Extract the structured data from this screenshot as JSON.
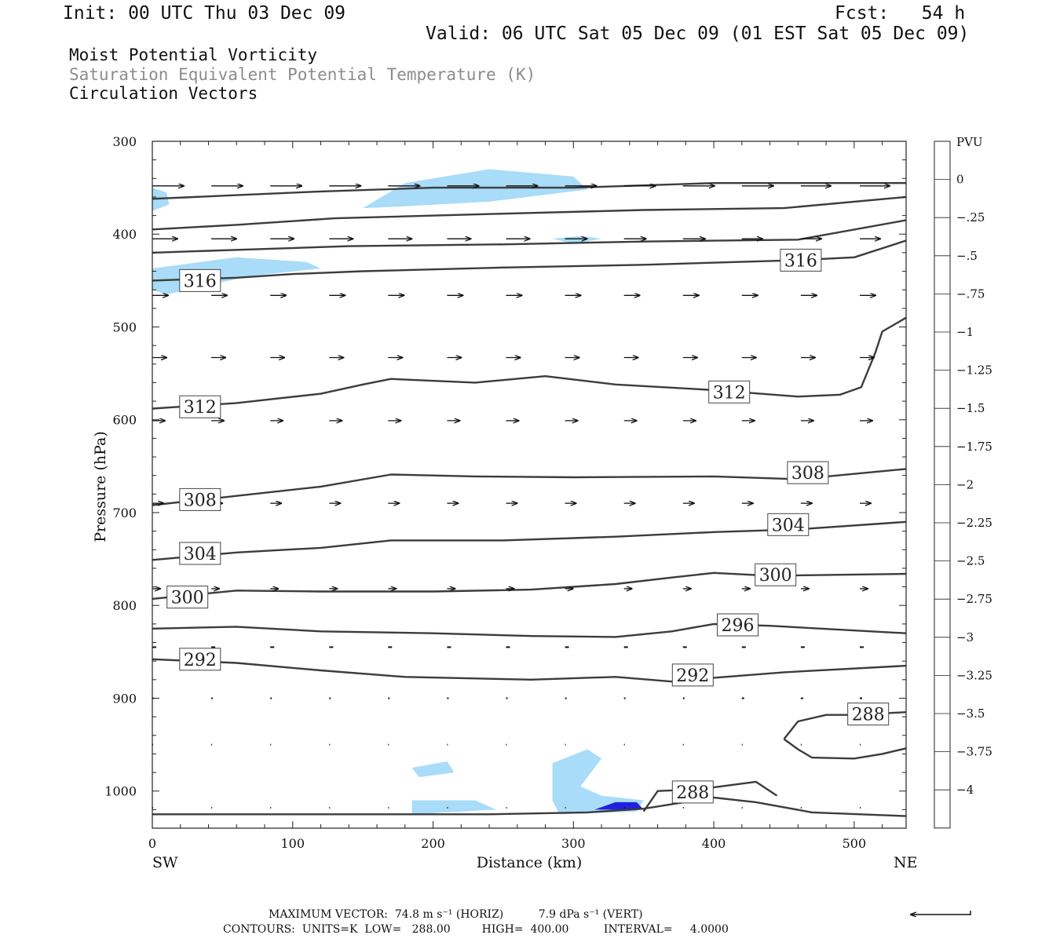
{
  "header": {
    "init": "Init: 00 UTC Thu 03 Dec 09",
    "fcst": "Fcst:   54 h",
    "valid": "Valid: 06 UTC Sat 05 Dec 09 (01 EST Sat 05 Dec 09)"
  },
  "titles": {
    "line1": "Moist Potential Vorticity",
    "line2": "Saturation Equivalent Potential Temperature (K)",
    "line3": "Circulation Vectors"
  },
  "colors": {
    "title_line2": "#8c8c8c",
    "contour": "#3c3c3c",
    "shade_light": "#a8dcf8",
    "shade_mid": "#8a9cec",
    "shade_dark": "#2020e0"
  },
  "chart_data": {
    "type": "contour",
    "xlabel": "Distance (km)",
    "ylabel": "Pressure (hPa)",
    "xlim": [
      0,
      537
    ],
    "ylim": [
      1040,
      300
    ],
    "x_ticks": [
      0,
      100,
      200,
      300,
      400,
      500
    ],
    "y_ticks": [
      300,
      400,
      500,
      600,
      700,
      800,
      900,
      1000
    ],
    "x_end_labels": {
      "left": "SW",
      "right": "NE"
    },
    "colorbar": {
      "title": "PVU",
      "levels": [
        "0",
        "-.25",
        "-.5",
        "-.75",
        "-1",
        "-1.25",
        "-1.5",
        "-1.75",
        "-2",
        "-2.25",
        "-2.5",
        "-2.75",
        "-3",
        "-3.25",
        "-3.5",
        "-3.75",
        "-4"
      ],
      "colors": [
        "#ffffff",
        "#ffffff",
        "#b4e4fa",
        "#a8d8f8",
        "#a0cdf6",
        "#a2c2f4",
        "#9fb6f2",
        "#9aa9f0",
        "#939ced",
        "#8a8eeb",
        "#8180e9",
        "#7672e7",
        "#6a62e6",
        "#5c52e4",
        "#4c40e3",
        "#3c2ee2",
        "#2a1ae0",
        "#1a0ce0"
      ]
    },
    "contours": [
      {
        "label": "316",
        "points": [
          [
            0,
            362
          ],
          [
            60,
            358
          ],
          [
            120,
            354
          ],
          [
            200,
            350
          ],
          [
            300,
            350
          ],
          [
            400,
            345
          ],
          [
            537,
            345
          ]
        ]
      },
      {
        "label": "316",
        "points": [
          [
            0,
            395
          ],
          [
            60,
            390
          ],
          [
            130,
            383
          ],
          [
            250,
            378
          ],
          [
            350,
            374
          ],
          [
            450,
            372
          ],
          [
            537,
            360
          ]
        ]
      },
      {
        "label": "316",
        "points": [
          [
            0,
            420
          ],
          [
            60,
            417
          ],
          [
            140,
            413
          ],
          [
            250,
            411
          ],
          [
            350,
            408
          ],
          [
            460,
            406
          ],
          [
            537,
            385
          ]
        ]
      },
      {
        "label": "316",
        "points": [
          [
            0,
            450
          ],
          [
            60,
            447
          ],
          [
            100,
            443
          ],
          [
            150,
            440
          ],
          [
            250,
            436
          ],
          [
            350,
            433
          ],
          [
            460,
            428
          ],
          [
            500,
            425
          ],
          [
            537,
            407
          ]
        ]
      },
      {
        "label": "312",
        "points": [
          [
            0,
            588
          ],
          [
            60,
            582
          ],
          [
            120,
            572
          ],
          [
            150,
            562
          ],
          [
            170,
            556
          ],
          [
            230,
            560
          ],
          [
            280,
            553
          ],
          [
            330,
            562
          ],
          [
            400,
            568
          ],
          [
            460,
            575
          ],
          [
            490,
            573
          ],
          [
            505,
            565
          ],
          [
            515,
            528
          ],
          [
            520,
            505
          ],
          [
            537,
            490
          ]
        ]
      },
      {
        "label": "308",
        "points": [
          [
            0,
            692
          ],
          [
            60,
            682
          ],
          [
            120,
            672
          ],
          [
            170,
            659
          ],
          [
            230,
            661
          ],
          [
            300,
            662
          ],
          [
            400,
            661
          ],
          [
            460,
            664
          ],
          [
            537,
            653
          ]
        ]
      },
      {
        "label": "304",
        "points": [
          [
            0,
            751
          ],
          [
            60,
            743
          ],
          [
            120,
            738
          ],
          [
            170,
            730
          ],
          [
            250,
            730
          ],
          [
            330,
            726
          ],
          [
            400,
            721
          ],
          [
            460,
            718
          ],
          [
            537,
            710
          ]
        ]
      },
      {
        "label": "300",
        "points": [
          [
            0,
            793
          ],
          [
            60,
            784
          ],
          [
            120,
            785
          ],
          [
            200,
            785
          ],
          [
            270,
            783
          ],
          [
            330,
            777
          ],
          [
            370,
            770
          ],
          [
            400,
            765
          ],
          [
            440,
            768
          ],
          [
            537,
            766
          ]
        ]
      },
      {
        "label": "296",
        "points": [
          [
            0,
            825
          ],
          [
            60,
            823
          ],
          [
            120,
            828
          ],
          [
            200,
            830
          ],
          [
            270,
            833
          ],
          [
            330,
            834
          ],
          [
            370,
            828
          ],
          [
            400,
            820
          ],
          [
            440,
            822
          ],
          [
            537,
            830
          ]
        ]
      },
      {
        "label": "292",
        "points": [
          [
            0,
            858
          ],
          [
            60,
            862
          ],
          [
            120,
            870
          ],
          [
            180,
            877
          ],
          [
            270,
            880
          ],
          [
            330,
            877
          ],
          [
            370,
            882
          ],
          [
            400,
            878
          ],
          [
            450,
            872
          ],
          [
            537,
            865
          ]
        ]
      },
      {
        "label": "288",
        "points": [
          [
            450,
            944
          ],
          [
            460,
            955
          ],
          [
            470,
            964
          ],
          [
            500,
            965
          ],
          [
            520,
            960
          ],
          [
            537,
            954
          ]
        ]
      },
      {
        "label": "288",
        "points": [
          [
            450,
            944
          ],
          [
            460,
            925
          ],
          [
            480,
            918
          ],
          [
            500,
            918
          ],
          [
            537,
            915
          ]
        ]
      },
      {
        "label": "288",
        "points": [
          [
            0,
            1025
          ],
          [
            80,
            1025
          ],
          [
            160,
            1025
          ],
          [
            240,
            1025
          ],
          [
            310,
            1023
          ],
          [
            350,
            1019
          ],
          [
            400,
            1007
          ],
          [
            430,
            1012
          ],
          [
            470,
            1023
          ],
          [
            537,
            1027
          ]
        ]
      },
      {
        "label": "288",
        "points": [
          [
            350,
            1022
          ],
          [
            360,
            1000
          ],
          [
            390,
            998
          ],
          [
            430,
            990
          ],
          [
            445,
            1005
          ]
        ]
      }
    ],
    "contour_labels": [
      {
        "text": "316",
        "x": 34,
        "y": 450
      },
      {
        "text": "316",
        "x": 462,
        "y": 428
      },
      {
        "text": "312",
        "x": 34,
        "y": 586
      },
      {
        "text": "312",
        "x": 411,
        "y": 570
      },
      {
        "text": "308",
        "x": 34,
        "y": 686
      },
      {
        "text": "308",
        "x": 467,
        "y": 657
      },
      {
        "text": "304",
        "x": 34,
        "y": 744
      },
      {
        "text": "304",
        "x": 453,
        "y": 713
      },
      {
        "text": "300",
        "x": 25,
        "y": 791
      },
      {
        "text": "300",
        "x": 444,
        "y": 767
      },
      {
        "text": "296",
        "x": 417,
        "y": 821
      },
      {
        "text": "292",
        "x": 34,
        "y": 858
      },
      {
        "text": "292",
        "x": 385,
        "y": 875
      },
      {
        "text": "288",
        "x": 510,
        "y": 917
      },
      {
        "text": "288",
        "x": 385,
        "y": 1001
      }
    ],
    "pv_shading": [
      {
        "level": "-.5",
        "points": [
          [
            150,
            372
          ],
          [
            180,
            345
          ],
          [
            240,
            330
          ],
          [
            300,
            338
          ],
          [
            310,
            352
          ],
          [
            240,
            365
          ],
          [
            180,
            370
          ]
        ]
      },
      {
        "level": "-.5",
        "points": [
          [
            0,
            437
          ],
          [
            60,
            425
          ],
          [
            110,
            430
          ],
          [
            120,
            437
          ],
          [
            70,
            445
          ],
          [
            10,
            465
          ],
          [
            0,
            460
          ]
        ]
      },
      {
        "level": "-.5",
        "points": [
          [
            0,
            350
          ],
          [
            10,
            355
          ],
          [
            12,
            368
          ],
          [
            0,
            375
          ]
        ]
      },
      {
        "level": "-.5",
        "points": [
          [
            285,
            405
          ],
          [
            305,
            402
          ],
          [
            320,
            405
          ],
          [
            300,
            410
          ]
        ]
      },
      {
        "level": "-.5",
        "points": [
          [
            190,
            348
          ],
          [
            200,
            345
          ],
          [
            220,
            345
          ],
          [
            225,
            348
          ],
          [
            210,
            352
          ]
        ]
      },
      {
        "level": "-.5",
        "points": [
          [
            185,
            975
          ],
          [
            210,
            968
          ],
          [
            215,
            980
          ],
          [
            190,
            985
          ]
        ]
      },
      {
        "level": "-.5",
        "points": [
          [
            185,
            1010
          ],
          [
            230,
            1010
          ],
          [
            245,
            1020
          ],
          [
            185,
            1025
          ]
        ]
      },
      {
        "level": "-.5",
        "points": [
          [
            285,
            970
          ],
          [
            310,
            955
          ],
          [
            320,
            965
          ],
          [
            305,
            995
          ],
          [
            320,
            1005
          ],
          [
            350,
            1010
          ],
          [
            345,
            1022
          ],
          [
            290,
            1025
          ],
          [
            285,
            1010
          ]
        ]
      },
      {
        "level": "-3",
        "points": [
          [
            315,
            1020
          ],
          [
            330,
            1012
          ],
          [
            345,
            1012
          ],
          [
            350,
            1020
          ]
        ]
      }
    ],
    "vectors": {
      "pressure_rows": [
        348,
        405,
        466,
        533,
        601,
        690,
        782,
        845,
        900,
        950,
        1018
      ],
      "x_positions": [
        0,
        42,
        84,
        126,
        168,
        210,
        252,
        294,
        336,
        378,
        420,
        462,
        504
      ],
      "u": [
        [
          40,
          40,
          40,
          40,
          40,
          40,
          40,
          40,
          40,
          40,
          40,
          38,
          38
        ],
        [
          32,
          32,
          30,
          30,
          30,
          30,
          30,
          28,
          28,
          28,
          26,
          26,
          26
        ],
        [
          20,
          20,
          20,
          20,
          20,
          20,
          20,
          20,
          20,
          20,
          20,
          20,
          20
        ],
        [
          18,
          18,
          18,
          18,
          18,
          18,
          18,
          18,
          18,
          18,
          18,
          18,
          18
        ],
        [
          16,
          16,
          16,
          16,
          16,
          16,
          16,
          16,
          16,
          16,
          16,
          16,
          16
        ],
        [
          14,
          14,
          14,
          14,
          14,
          14,
          14,
          14,
          14,
          14,
          14,
          14,
          14
        ],
        [
          10,
          10,
          10,
          10,
          10,
          10,
          10,
          10,
          10,
          10,
          10,
          10,
          10
        ],
        [
          5,
          5,
          5,
          5,
          5,
          5,
          5,
          5,
          5,
          5,
          5,
          5,
          5
        ],
        [
          2,
          2,
          2,
          2,
          2,
          2,
          2,
          2,
          2,
          2,
          3,
          3,
          3
        ],
        [
          1,
          1,
          1,
          1,
          1,
          1,
          1,
          1,
          1,
          1,
          1,
          1,
          1
        ],
        [
          1,
          1,
          1,
          1,
          1,
          1,
          1,
          1,
          1,
          1,
          1,
          1,
          1
        ]
      ]
    }
  },
  "footer": {
    "max_vector": "MAXIMUM VECTOR:  74.8 m s⁻¹ (HORIZ)          7.9 dPa s⁻¹ (VERT)",
    "contours": "CONTOURS:  UNITS=K  LOW=   288.00         HIGH=  400.00          INTERVAL=     4.0000"
  }
}
